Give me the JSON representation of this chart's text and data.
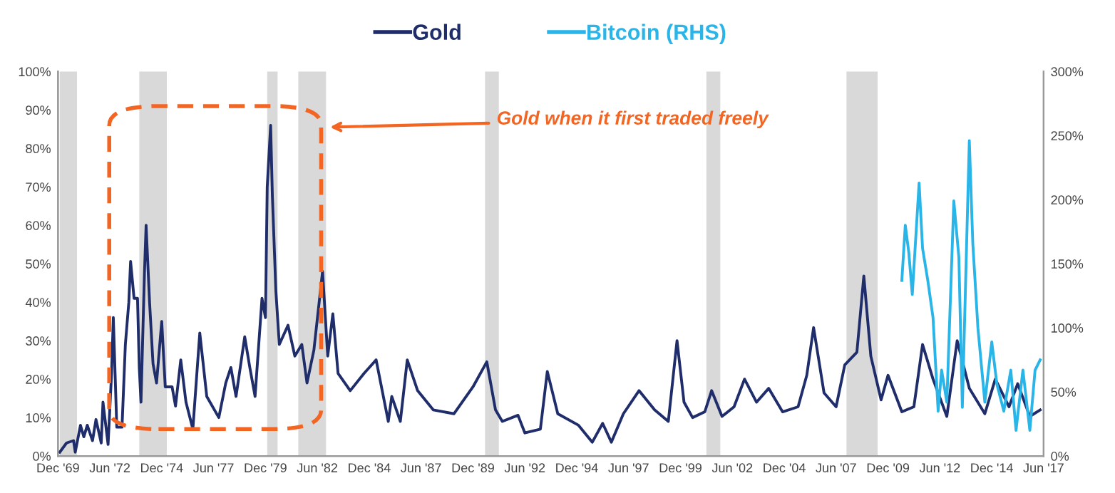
{
  "chart_data": {
    "type": "line",
    "annotations": [
      "Gold when it first traded freely"
    ],
    "xlim": [
      "1969-12",
      "2017-06"
    ],
    "xticks": [
      {
        "value": "1969-12",
        "label": "Dec '69"
      },
      {
        "value": "1972-06",
        "label": "Jun '72"
      },
      {
        "value": "1974-12",
        "label": "Dec '74"
      },
      {
        "value": "1977-06",
        "label": "Jun '77"
      },
      {
        "value": "1979-12",
        "label": "Dec '79"
      },
      {
        "value": "1982-06",
        "label": "Jun '82"
      },
      {
        "value": "1984-12",
        "label": "Dec '84"
      },
      {
        "value": "1987-06",
        "label": "Jun '87"
      },
      {
        "value": "1989-12",
        "label": "Dec '89"
      },
      {
        "value": "1992-06",
        "label": "Jun '92"
      },
      {
        "value": "1994-12",
        "label": "Dec '94"
      },
      {
        "value": "1997-06",
        "label": "Jun '97"
      },
      {
        "value": "1999-12",
        "label": "Dec '99"
      },
      {
        "value": "2002-06",
        "label": "Jun '02"
      },
      {
        "value": "2004-12",
        "label": "Dec '04"
      },
      {
        "value": "2007-06",
        "label": "Jun '07"
      },
      {
        "value": "2009-12",
        "label": "Dec '09"
      },
      {
        "value": "2012-06",
        "label": "Jun '12"
      },
      {
        "value": "2014-12",
        "label": "Dec '14"
      },
      {
        "value": "2017-06",
        "label": "Jun '17"
      }
    ],
    "ylim": [
      0,
      100
    ],
    "yticks": [
      {
        "value": 0,
        "label": "0%"
      },
      {
        "value": 10,
        "label": "10%"
      },
      {
        "value": 20,
        "label": "20%"
      },
      {
        "value": 30,
        "label": "30%"
      },
      {
        "value": 40,
        "label": "40%"
      },
      {
        "value": 50,
        "label": "50%"
      },
      {
        "value": 60,
        "label": "60%"
      },
      {
        "value": 70,
        "label": "70%"
      },
      {
        "value": 80,
        "label": "80%"
      },
      {
        "value": 90,
        "label": "90%"
      },
      {
        "value": 100,
        "label": "100%"
      }
    ],
    "y2lim": [
      0,
      300
    ],
    "y2ticks": [
      {
        "value": 0,
        "label": "0%"
      },
      {
        "value": 50,
        "label": "50%"
      },
      {
        "value": 100,
        "label": "100%"
      },
      {
        "value": 150,
        "label": "150%"
      },
      {
        "value": 200,
        "label": "200%"
      },
      {
        "value": 250,
        "label": "250%"
      },
      {
        "value": 300,
        "label": "300%"
      }
    ],
    "legend": "top",
    "bands": [
      {
        "axis": "x",
        "from": "1970-01",
        "to": "1970-11",
        "color": "#d9d9d9"
      },
      {
        "axis": "x",
        "from": "1973-11",
        "to": "1975-03",
        "color": "#d9d9d9"
      },
      {
        "axis": "x",
        "from": "1980-01",
        "to": "1980-07",
        "color": "#d9d9d9"
      },
      {
        "axis": "x",
        "from": "1981-07",
        "to": "1982-11",
        "color": "#d9d9d9"
      },
      {
        "axis": "x",
        "from": "1990-07",
        "to": "1991-03",
        "color": "#d9d9d9"
      },
      {
        "axis": "x",
        "from": "2001-03",
        "to": "2001-11",
        "color": "#d9d9d9"
      },
      {
        "axis": "x",
        "from": "2007-12",
        "to": "2009-06",
        "color": "#d9d9d9"
      }
    ],
    "series": [
      {
        "name": "Gold",
        "color": "#1f2d6b",
        "x": [
          "1970-01",
          "1970-05",
          "1970-09",
          "1970-10",
          "1971-01",
          "1971-03",
          "1971-05",
          "1971-08",
          "1971-10",
          "1972-01",
          "1972-02",
          "1972-05",
          "1972-07",
          "1972-08",
          "1972-10",
          "1973-01",
          "1973-03",
          "1973-05",
          "1973-06",
          "1973-08",
          "1973-10",
          "1973-11",
          "1973-12",
          "1974-02",
          "1974-03",
          "1974-05",
          "1974-07",
          "1974-09",
          "1974-12",
          "1975-02",
          "1975-06",
          "1975-08",
          "1975-11",
          "1976-02",
          "1976-06",
          "1976-10",
          "1977-02",
          "1977-09",
          "1978-01",
          "1978-04",
          "1978-07",
          "1978-12",
          "1979-03",
          "1979-06",
          "1979-10",
          "1979-12",
          "1980-01",
          "1980-03",
          "1980-04",
          "1980-06",
          "1980-08",
          "1980-10",
          "1981-01",
          "1981-05",
          "1981-09",
          "1981-12",
          "1982-04",
          "1982-09",
          "1982-12",
          "1983-03",
          "1983-06",
          "1984-01",
          "1984-09",
          "1985-04",
          "1985-11",
          "1986-01",
          "1986-06",
          "1986-10",
          "1987-04",
          "1988-01",
          "1989-01",
          "1989-12",
          "1990-08",
          "1991-01",
          "1991-05",
          "1992-02",
          "1992-06",
          "1993-03",
          "1993-07",
          "1994-01",
          "1995-01",
          "1995-09",
          "1996-03",
          "1996-08",
          "1997-03",
          "1997-12",
          "1998-09",
          "1999-05",
          "1999-10",
          "2000-02",
          "2000-07",
          "2001-02",
          "2001-06",
          "2001-12",
          "2002-07",
          "2003-01",
          "2003-08",
          "2004-03",
          "2004-11",
          "2005-08",
          "2006-01",
          "2006-05",
          "2006-11",
          "2007-06",
          "2007-11",
          "2008-06",
          "2008-10",
          "2009-02",
          "2009-08",
          "2009-12",
          "2010-08",
          "2011-03",
          "2011-08",
          "2012-02",
          "2012-10",
          "2013-04",
          "2013-11",
          "2014-08",
          "2015-02",
          "2015-10",
          "2016-03",
          "2016-10",
          "2017-04"
        ],
        "values": [
          1,
          3.4,
          4,
          1,
          8,
          5,
          8,
          4,
          9.5,
          3.4,
          14,
          3,
          21.5,
          36,
          7.5,
          7.5,
          29,
          40,
          50.6,
          41,
          41,
          23,
          14,
          48,
          60,
          40,
          24,
          19,
          35,
          18,
          18,
          13,
          25,
          14,
          7,
          32,
          15.5,
          10,
          19,
          23,
          15.5,
          31,
          23,
          15.5,
          41,
          36,
          70,
          86,
          67.5,
          43,
          29,
          31,
          34,
          26,
          29,
          19,
          27.5,
          48,
          26,
          37,
          21.5,
          17,
          21.5,
          25,
          9,
          15.5,
          9,
          25,
          17,
          12,
          11,
          18,
          24.5,
          12,
          9,
          10.6,
          6,
          7,
          22,
          11,
          8,
          3.6,
          8.5,
          3.6,
          11,
          17,
          12,
          9,
          30,
          14,
          10,
          11.5,
          17,
          10.3,
          12.8,
          20,
          14,
          17.6,
          11.5,
          12.8,
          21,
          33.4,
          16.4,
          12.8,
          23.7,
          27,
          46.8,
          26,
          14.6,
          21,
          11.5,
          12.8,
          29,
          20,
          10.3,
          30,
          17.6,
          11,
          20,
          12.8,
          18.8,
          10.3,
          12
        ]
      },
      {
        "name": "Bitcoin (RHS)",
        "color": "#29b5e8",
        "axis": "y2",
        "x": [
          "2010-08",
          "2010-10",
          "2010-12",
          "2011-02",
          "2011-06",
          "2011-08",
          "2011-11",
          "2012-02",
          "2012-05",
          "2012-07",
          "2012-10",
          "2013-02",
          "2013-05",
          "2013-07",
          "2013-11",
          "2014-01",
          "2014-04",
          "2014-08",
          "2014-12",
          "2015-03",
          "2015-07",
          "2015-11",
          "2016-02",
          "2016-06",
          "2016-10",
          "2017-01",
          "2017-04"
        ],
        "values": [
          137,
          180,
          159,
          126,
          213,
          162,
          137,
          108,
          35,
          67,
          42,
          199,
          155,
          38,
          246,
          166,
          100,
          42,
          89,
          56,
          35,
          67,
          20,
          67,
          20,
          67,
          75
        ]
      }
    ]
  }
}
